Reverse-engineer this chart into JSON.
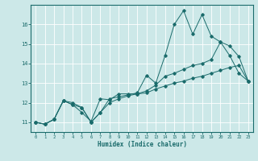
{
  "xlabel": "Humidex (Indice chaleur)",
  "bg_color": "#cce8e8",
  "line_color": "#1a6b6b",
  "grid_color": "#ffffff",
  "xlim": [
    -0.5,
    23.5
  ],
  "ylim": [
    10.5,
    17.0
  ],
  "yticks": [
    11,
    12,
    13,
    14,
    15,
    16
  ],
  "xticks": [
    0,
    1,
    2,
    3,
    4,
    5,
    6,
    7,
    8,
    9,
    10,
    11,
    12,
    13,
    14,
    15,
    16,
    17,
    18,
    19,
    20,
    21,
    22,
    23
  ],
  "line1_x": [
    0,
    1,
    2,
    3,
    4,
    5,
    6,
    7,
    8,
    9,
    10,
    11,
    12,
    13,
    14,
    15,
    16,
    17,
    18,
    19,
    20,
    21,
    22,
    23
  ],
  "line1_y": [
    11.0,
    10.9,
    11.15,
    12.1,
    12.0,
    11.75,
    11.0,
    11.5,
    12.2,
    12.3,
    12.4,
    12.5,
    13.4,
    13.0,
    14.4,
    16.0,
    16.7,
    15.5,
    16.5,
    15.4,
    15.1,
    14.4,
    13.5,
    13.1
  ],
  "line2_x": [
    0,
    1,
    2,
    3,
    4,
    5,
    6,
    7,
    8,
    9,
    10,
    11,
    12,
    13,
    14,
    15,
    16,
    17,
    18,
    19,
    20,
    21,
    22,
    23
  ],
  "line2_y": [
    11.0,
    10.9,
    11.15,
    12.1,
    11.9,
    11.5,
    11.05,
    12.2,
    12.15,
    12.45,
    12.45,
    12.45,
    12.6,
    12.9,
    13.35,
    13.5,
    13.7,
    13.9,
    14.0,
    14.2,
    15.1,
    14.9,
    14.35,
    13.1
  ],
  "line3_x": [
    0,
    1,
    2,
    3,
    4,
    5,
    6,
    7,
    8,
    9,
    10,
    11,
    12,
    13,
    14,
    15,
    16,
    17,
    18,
    19,
    20,
    21,
    22,
    23
  ],
  "line3_y": [
    11.0,
    10.9,
    11.15,
    12.1,
    11.9,
    11.75,
    11.0,
    11.5,
    12.0,
    12.2,
    12.35,
    12.45,
    12.5,
    12.7,
    12.85,
    13.0,
    13.1,
    13.25,
    13.35,
    13.5,
    13.65,
    13.8,
    13.9,
    13.1
  ]
}
